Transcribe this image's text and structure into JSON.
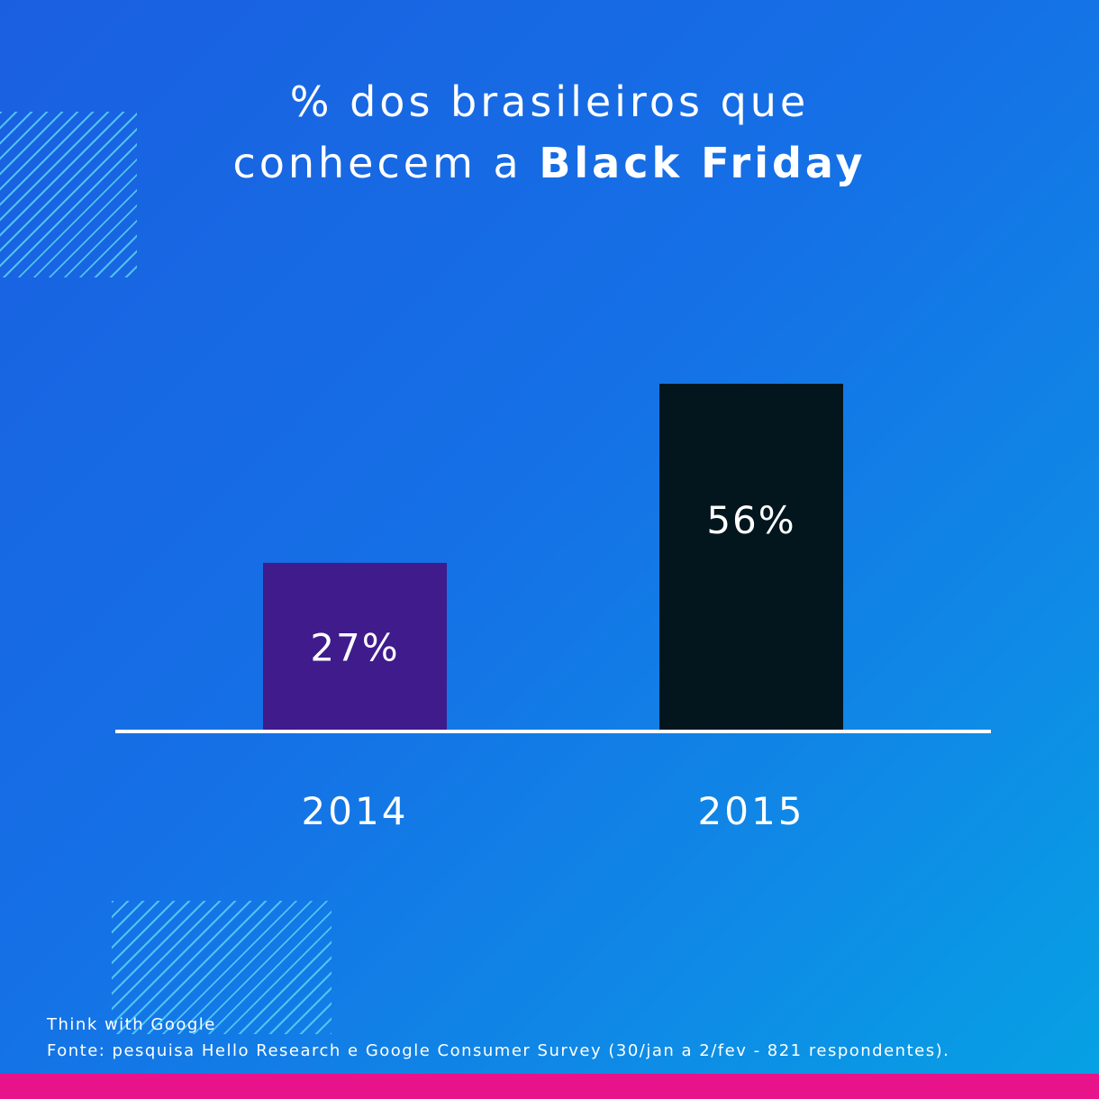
{
  "colors": {
    "accent_bar": "#e8128a",
    "bar_2014": "#3f1b8c",
    "bar_2015": "#03161d",
    "baseline": "#ffffff",
    "hatch": "#5ad2f5"
  },
  "title": {
    "line1": "% dos brasileiros que",
    "line2_prefix": "conhecem a ",
    "line2_bold": "Black Friday"
  },
  "chart_data": {
    "type": "bar",
    "categories": [
      "2014",
      "2015"
    ],
    "values": [
      27,
      56
    ],
    "data_labels": [
      "27%",
      "56%"
    ],
    "ylim": [
      0,
      56
    ],
    "grid": false,
    "legend": "none"
  },
  "footer": {
    "brand": "Think with Google",
    "source": "Fonte: pesquisa Hello Research e Google Consumer Survey (30/jan a 2/fev - 821 respondentes)."
  }
}
